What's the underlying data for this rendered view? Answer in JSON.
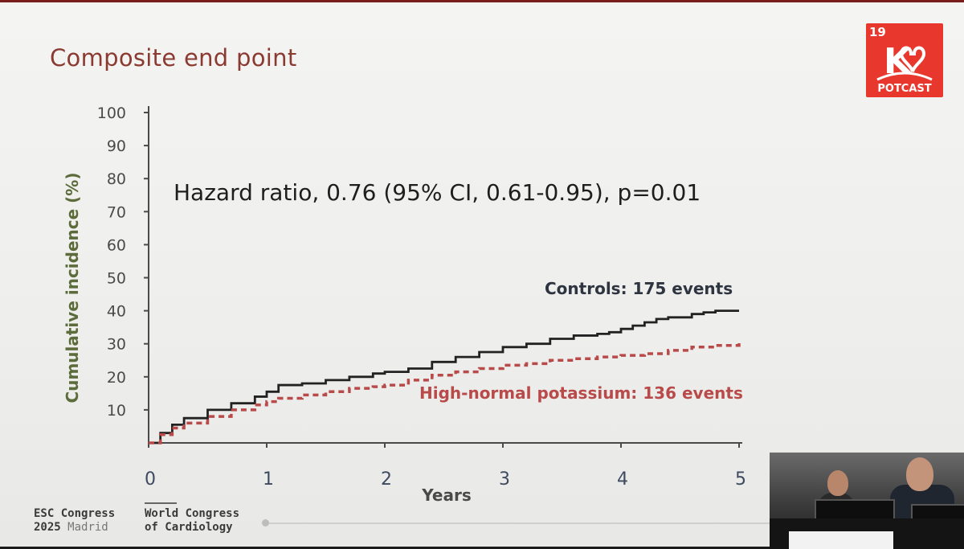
{
  "slide": {
    "title": "Composite end point",
    "logo": {
      "number": "19",
      "letter": "K",
      "text": "POTCAST"
    },
    "footer": {
      "congress_line1": "ESC Congress",
      "congress_year": "2025",
      "congress_city": "Madrid",
      "world_line1": "World Congress",
      "world_line2": "of Cardiology"
    }
  },
  "chart_data": {
    "type": "line",
    "xlabel": "Years",
    "ylabel": "Cumulative incidence (%)",
    "xlim": [
      0,
      5
    ],
    "ylim": [
      0,
      100
    ],
    "x_ticks": [
      "0",
      "1",
      "2",
      "3",
      "4",
      "5"
    ],
    "y_ticks": [
      "10",
      "20",
      "30",
      "40",
      "50",
      "60",
      "70",
      "80",
      "90",
      "100"
    ],
    "annotation": "Hazard ratio, 0.76 (95% CI, 0.61-0.95), p=0.01",
    "grid": false,
    "series": [
      {
        "name": "Controls: 175 events",
        "color": "#222222",
        "style": "solid",
        "x": [
          0,
          0.1,
          0.2,
          0.3,
          0.5,
          0.7,
          0.9,
          1.0,
          1.1,
          1.3,
          1.5,
          1.7,
          1.9,
          2.0,
          2.2,
          2.4,
          2.6,
          2.8,
          3.0,
          3.2,
          3.4,
          3.6,
          3.8,
          3.9,
          4.0,
          4.1,
          4.2,
          4.3,
          4.4,
          4.6,
          4.7,
          4.8,
          5.0
        ],
        "y": [
          0,
          3,
          5.5,
          7.5,
          10,
          12,
          14,
          15.5,
          17.5,
          18,
          19,
          20,
          21,
          21.5,
          22.5,
          24.5,
          26,
          27.5,
          29,
          30,
          31.5,
          32.5,
          33,
          33.5,
          34.5,
          35.5,
          36.5,
          37.5,
          38,
          39,
          39.5,
          40,
          40
        ]
      },
      {
        "name": "High-normal potassium: 136 events",
        "color": "#b84a4a",
        "style": "dashed",
        "x": [
          0,
          0.1,
          0.2,
          0.3,
          0.5,
          0.7,
          0.9,
          1.0,
          1.1,
          1.3,
          1.5,
          1.7,
          1.9,
          2.0,
          2.2,
          2.4,
          2.6,
          2.8,
          3.0,
          3.2,
          3.4,
          3.6,
          3.8,
          4.0,
          4.2,
          4.4,
          4.6,
          4.8,
          5.0
        ],
        "y": [
          0,
          2.5,
          4.5,
          6,
          8,
          10,
          11.5,
          12.5,
          13.5,
          14.5,
          15.5,
          16.5,
          17,
          17.5,
          19,
          20.5,
          21.5,
          22.5,
          23.5,
          24,
          25,
          25.5,
          26,
          26.5,
          27,
          28,
          29,
          29.5,
          31
        ]
      }
    ]
  }
}
